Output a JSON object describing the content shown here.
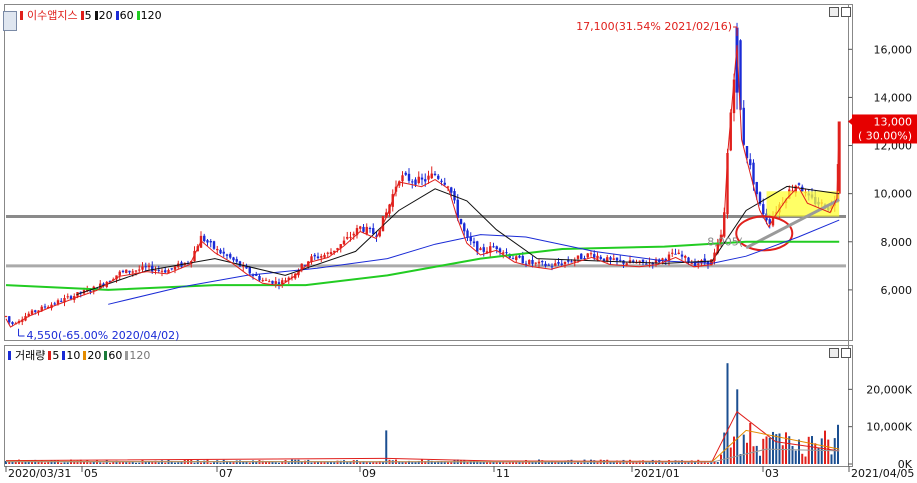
{
  "colors": {
    "up": "#e0201c",
    "down": "#1a2bd6",
    "ma5": "#e0201c",
    "ma20": "#111111",
    "ma60": "#1a2bd6",
    "ma120": "#22cc22",
    "vol_ma120": "#9a9a9a",
    "vol_ma20": "#e38b00",
    "price_label_bg": "#e60000"
  },
  "price_panel": {
    "legend": {
      "title": "이수앱지스",
      "items": [
        {
          "label": "5",
          "color": "#e0201c"
        },
        {
          "label": "20",
          "color": "#111111"
        },
        {
          "label": "60",
          "color": "#1a2bd6"
        },
        {
          "label": "120",
          "color": "#22cc22"
        }
      ]
    },
    "high_annotation": "17,100(31.54% 2021/02/16)",
    "low_annotation": "4,550(-65.00% 2020/04/02)",
    "mid_annotation": "8,005(",
    "current_price_label": "13,000",
    "current_pct_label": "( 30.00%)"
  },
  "volume_panel": {
    "legend": {
      "title": "거래량",
      "items": [
        {
          "label": "5",
          "color": "#e0201c"
        },
        {
          "label": "10",
          "color": "#1a2bd6"
        },
        {
          "label": "20",
          "color": "#e38b00"
        },
        {
          "label": "60",
          "color": "#1a7a3a"
        },
        {
          "label": "120",
          "color": "#9a9a9a"
        }
      ]
    }
  },
  "x_axis_labels": [
    "2020/03/31",
    "05",
    "07",
    "09",
    "11",
    "2021/01",
    "03",
    "2021/04/05"
  ],
  "chart_data": [
    {
      "type": "candlestick",
      "title": "이수앱지스",
      "x_range": [
        "2020/03/31",
        "2021/04/05"
      ],
      "ylim": [
        4000,
        17800
      ],
      "y_ticks": [
        6000,
        8000,
        10000,
        12000,
        14000,
        16000
      ],
      "y_tick_labels": [
        "6,000",
        "8,000",
        "10,000",
        "12,000",
        "14,000",
        "16,000"
      ],
      "horizontal_lines": [
        9050,
        7000
      ],
      "x_tick_labels": [
        "2020/03/31",
        "05",
        "07",
        "09",
        "11",
        "2021/01",
        "03"
      ],
      "price_path": [
        [
          "2020/03/31",
          4900
        ],
        [
          "2020/04/02",
          4550
        ],
        [
          "2020/04/10",
          5000
        ],
        [
          "2020/04/20",
          5400
        ],
        [
          "2020/05/01",
          5800
        ],
        [
          "2020/05/10",
          6100
        ],
        [
          "2020/05/20",
          6700
        ],
        [
          "2020/06/01",
          6900
        ],
        [
          "2020/06/10",
          6800
        ],
        [
          "2020/06/20",
          7200
        ],
        [
          "2020/06/25",
          8200
        ],
        [
          "2020/07/01",
          7700
        ],
        [
          "2020/07/08",
          7300
        ],
        [
          "2020/07/15",
          6800
        ],
        [
          "2020/07/22",
          6400
        ],
        [
          "2020/07/30",
          6300
        ],
        [
          "2020/08/05",
          6700
        ],
        [
          "2020/08/12",
          7300
        ],
        [
          "2020/08/20",
          7500
        ],
        [
          "2020/08/27",
          8000
        ],
        [
          "2020/09/03",
          8600
        ],
        [
          "2020/09/10",
          8300
        ],
        [
          "2020/09/15",
          9300
        ],
        [
          "2020/09/20",
          10700
        ],
        [
          "2020/09/25",
          10600
        ],
        [
          "2020/09/30",
          10500
        ],
        [
          "2020/10/06",
          10800
        ],
        [
          "2020/10/12",
          10400
        ],
        [
          "2020/10/16",
          9100
        ],
        [
          "2020/10/20",
          8100
        ],
        [
          "2020/10/26",
          7600
        ],
        [
          "2020/11/02",
          7800
        ],
        [
          "2020/11/10",
          7300
        ],
        [
          "2020/11/18",
          7100
        ],
        [
          "2020/11/26",
          7000
        ],
        [
          "2020/12/04",
          7200
        ],
        [
          "2020/12/14",
          7500
        ],
        [
          "2020/12/22",
          7200
        ],
        [
          "2021/01/04",
          7100
        ],
        [
          "2021/01/12",
          7200
        ],
        [
          "2021/01/20",
          7500
        ],
        [
          "2021/01/28",
          7100
        ],
        [
          "2021/02/05",
          7200
        ],
        [
          "2021/02/10",
          8500
        ],
        [
          "2021/02/12",
          12000
        ],
        [
          "2021/02/16",
          16500
        ],
        [
          "2021/02/18",
          12500
        ],
        [
          "2021/02/22",
          11000
        ],
        [
          "2021/02/26",
          9500
        ],
        [
          "2021/03/02",
          8800
        ],
        [
          "2021/03/05",
          9300
        ],
        [
          "2021/03/10",
          10000
        ],
        [
          "2021/03/15",
          10500
        ],
        [
          "2021/03/19",
          9800
        ],
        [
          "2021/03/24",
          9600
        ],
        [
          "2021/03/29",
          9400
        ],
        [
          "2021/04/01",
          10000
        ],
        [
          "2021/04/02",
          13000
        ]
      ],
      "ma20_path": [
        [
          "2020/05/01",
          5800
        ],
        [
          "2020/06/01",
          6800
        ],
        [
          "2020/07/01",
          7300
        ],
        [
          "2020/08/01",
          6600
        ],
        [
          "2020/09/01",
          7600
        ],
        [
          "2020/09/20",
          9300
        ],
        [
          "2020/10/06",
          10200
        ],
        [
          "2020/10/20",
          9700
        ],
        [
          "2020/11/02",
          8500
        ],
        [
          "2020/11/20",
          7300
        ],
        [
          "2021/01/15",
          7100
        ],
        [
          "2021/02/05",
          7200
        ],
        [
          "2021/02/20",
          9300
        ],
        [
          "2021/03/10",
          10300
        ],
        [
          "2021/04/02",
          10000
        ]
      ],
      "ma60_path": [
        [
          "2020/05/15",
          5400
        ],
        [
          "2020/06/15",
          6100
        ],
        [
          "2020/07/15",
          6600
        ],
        [
          "2020/08/15",
          6900
        ],
        [
          "2020/09/15",
          7300
        ],
        [
          "2020/10/06",
          7900
        ],
        [
          "2020/10/26",
          8300
        ],
        [
          "2020/11/15",
          8200
        ],
        [
          "2020/12/15",
          7600
        ],
        [
          "2021/01/15",
          7200
        ],
        [
          "2021/02/05",
          7100
        ],
        [
          "2021/02/20",
          7400
        ],
        [
          "2021/03/15",
          8200
        ],
        [
          "2021/04/02",
          8900
        ]
      ],
      "ma120_path": [
        [
          "2020/03/31",
          6200
        ],
        [
          "2020/05/15",
          6000
        ],
        [
          "2020/07/01",
          6200
        ],
        [
          "2020/08/10",
          6200
        ],
        [
          "2020/09/15",
          6600
        ],
        [
          "2020/10/26",
          7300
        ],
        [
          "2020/12/01",
          7700
        ],
        [
          "2021/01/15",
          7800
        ],
        [
          "2021/02/20",
          8000
        ],
        [
          "2021/04/02",
          8000
        ]
      ],
      "annotations": [
        {
          "text": "17,100(31.54% 2021/02/16)",
          "x": "2021/02/16",
          "y": 17100
        },
        {
          "text": "4,550(-65.00% 2020/04/02)",
          "x": "2020/04/02",
          "y": 4550
        },
        {
          "text": "8,005(",
          "x": "2021/02/12",
          "y": 8005
        }
      ],
      "current_price": 13000,
      "current_pct": 30.0
    },
    {
      "type": "bar",
      "title": "거래량",
      "ylim": [
        0,
        30000
      ],
      "y_ticks": [
        0,
        10000,
        20000
      ],
      "y_tick_labels": [
        "0K",
        "10,000K",
        "20,000K"
      ],
      "spikes": [
        [
          "2020/09/15",
          9000
        ],
        [
          "2021/02/12",
          27000
        ],
        [
          "2021/02/16",
          20000
        ],
        [
          "2021/02/22",
          11000
        ],
        [
          "2021/04/02",
          10500
        ]
      ]
    }
  ]
}
